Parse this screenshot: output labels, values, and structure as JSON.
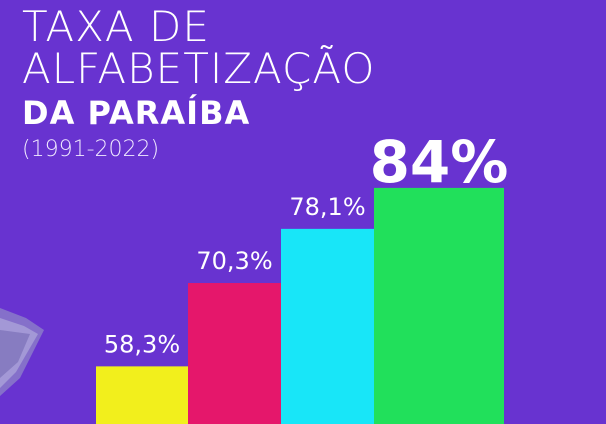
{
  "title_line1": "TAXA DE",
  "title_line2": "ALFABETIZAÇÃO",
  "title_line3": "DA PARAÍBA",
  "subtitle": "(1991-2022)",
  "colors": {
    "background": "#6833d0",
    "bars": [
      "#f2ef1c",
      "#e5176b",
      "#18e6f8",
      "#21e05b"
    ]
  },
  "chart_data": {
    "type": "bar",
    "values": [
      58.3,
      70.3,
      78.1,
      84
    ],
    "data_labels": [
      "58,3%",
      "70,3%",
      "78,1%",
      "84%"
    ],
    "ylim": [
      50,
      86
    ]
  }
}
